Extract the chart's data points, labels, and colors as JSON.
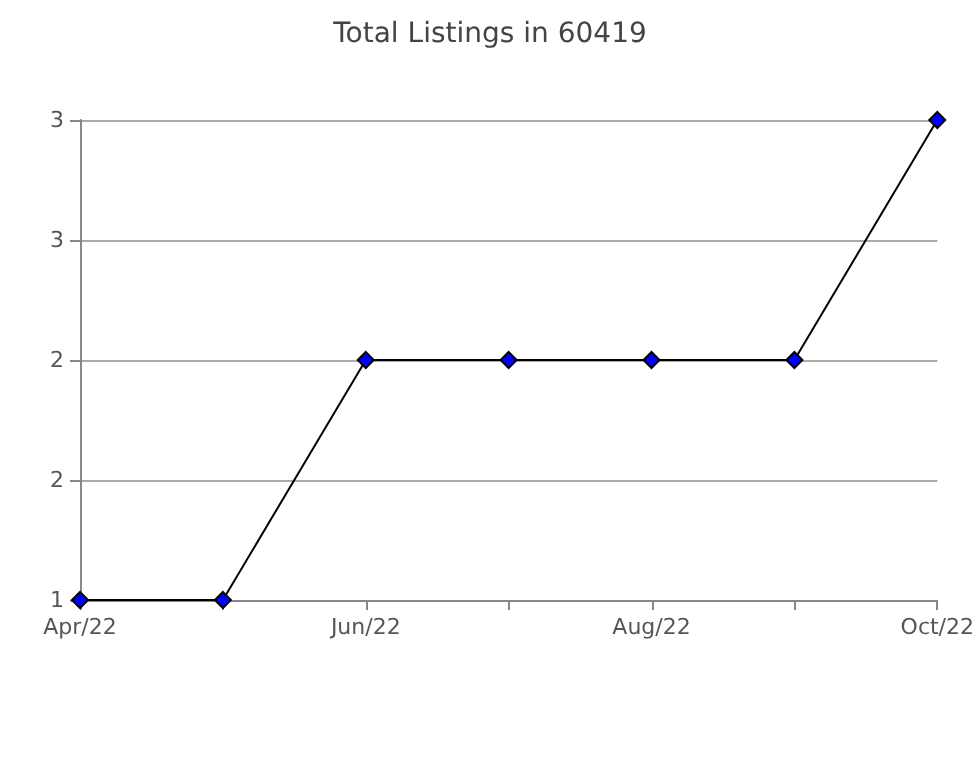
{
  "chart_data": {
    "type": "line",
    "title": "Total Listings in 60419",
    "categories": [
      "Apr/22",
      null,
      "Jun/22",
      null,
      "Aug/22",
      null,
      "Oct/22"
    ],
    "series": [
      {
        "color": "#0000ff",
        "values": [
          1,
          1,
          2,
          2,
          2,
          2,
          3
        ]
      }
    ],
    "ylim": [
      1,
      3
    ],
    "yticks": [
      1,
      {
        "value": 1.5,
        "label": "2"
      },
      2,
      {
        "value": 2.5,
        "label": "3"
      },
      3
    ],
    "grid": "y",
    "marker": "diamond",
    "line_style": "solid"
  }
}
